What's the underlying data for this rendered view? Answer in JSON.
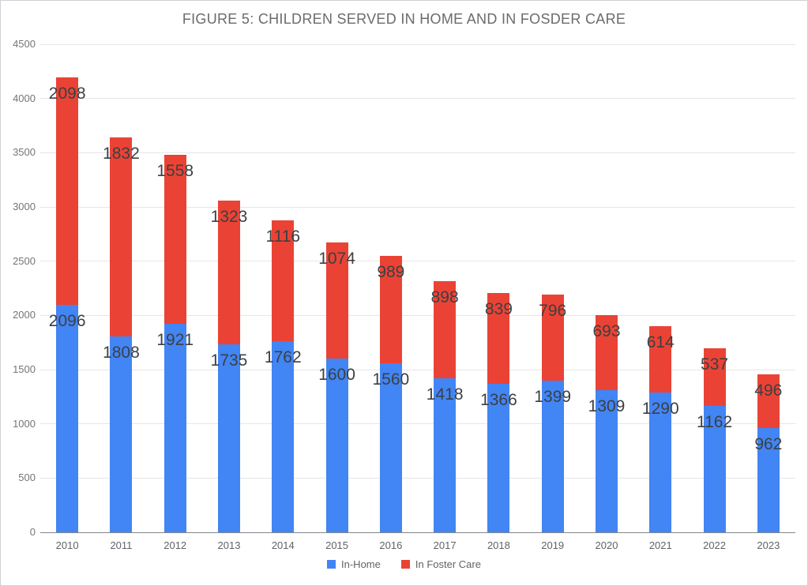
{
  "chart_data": {
    "type": "bar",
    "stacked": true,
    "title": "FIGURE 5: CHILDREN SERVED IN HOME AND IN FOSDER CARE",
    "categories": [
      "2010",
      "2011",
      "2012",
      "2013",
      "2014",
      "2015",
      "2016",
      "2017",
      "2018",
      "2019",
      "2020",
      "2021",
      "2022",
      "2023"
    ],
    "series": [
      {
        "name": "In-Home",
        "color": "#4285F4",
        "values": [
          2096,
          1808,
          1921,
          1735,
          1762,
          1600,
          1560,
          1418,
          1366,
          1399,
          1309,
          1290,
          1162,
          962
        ]
      },
      {
        "name": "In Foster Care",
        "color": "#EA4335",
        "values": [
          2098,
          1832,
          1558,
          1323,
          1116,
          1074,
          989,
          898,
          839,
          796,
          693,
          614,
          537,
          496
        ]
      }
    ],
    "ylim": [
      0,
      4500
    ],
    "ytick_step": 500,
    "yticks": [
      "0",
      "500",
      "1000",
      "1500",
      "2000",
      "2500",
      "3000",
      "3500",
      "4000",
      "4500"
    ],
    "grid": true,
    "data_labels": true,
    "legend_position": "bottom",
    "colors": {
      "gridline": "#e6e6e6",
      "axis_line": "#80868b",
      "axis_text": "#757575",
      "data_label": "#3c4043",
      "title_text": "#6b6b6b"
    }
  }
}
